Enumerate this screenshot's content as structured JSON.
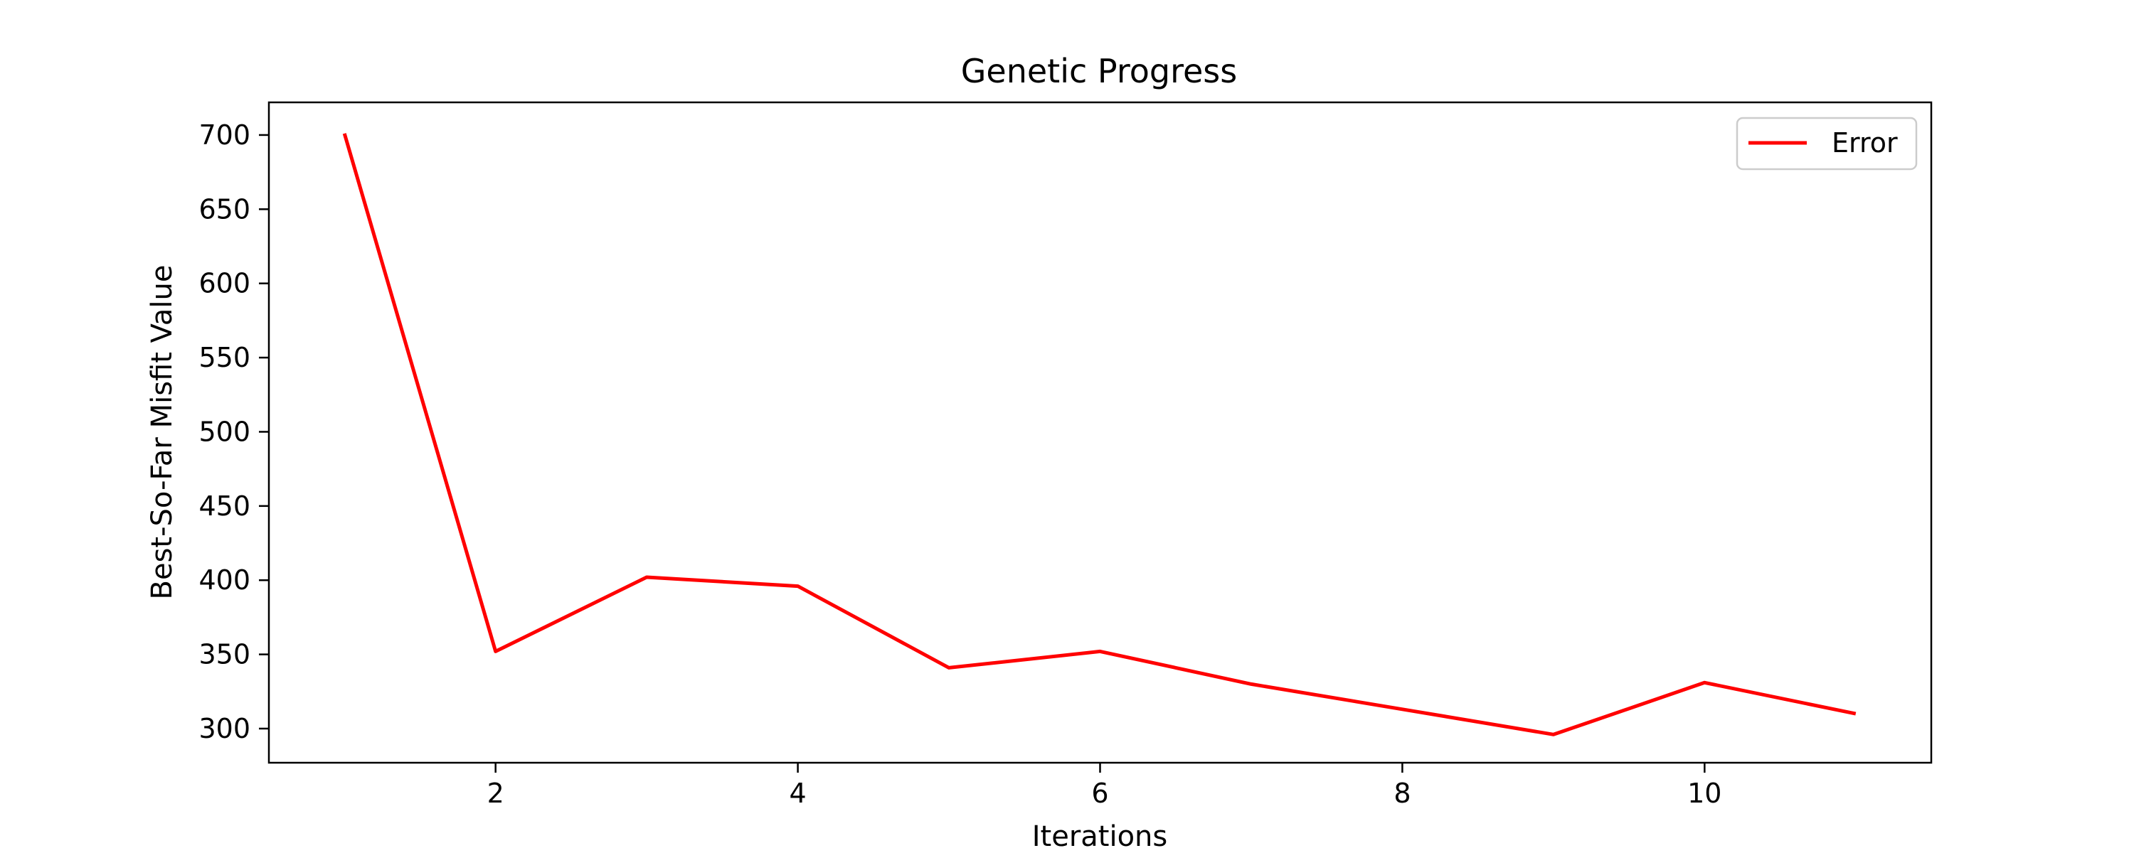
{
  "chart_data": {
    "type": "line",
    "title": "Genetic Progress",
    "xlabel": "Iterations",
    "ylabel": "Best-So-Far Misfit Value",
    "xlim": [
      0.5,
      11.5
    ],
    "ylim": [
      277,
      722
    ],
    "x_ticks": [
      2,
      4,
      6,
      8,
      10
    ],
    "y_ticks": [
      300,
      350,
      400,
      450,
      500,
      550,
      600,
      650,
      700
    ],
    "grid": false,
    "legend_position": "top-right",
    "series": [
      {
        "name": "Error",
        "color": "#ff0000",
        "x": [
          1,
          2,
          3,
          4,
          5,
          6,
          7,
          8,
          9,
          10,
          11
        ],
        "y": [
          701,
          352,
          402,
          396,
          341,
          352,
          330,
          313,
          296,
          331,
          310
        ]
      }
    ]
  }
}
